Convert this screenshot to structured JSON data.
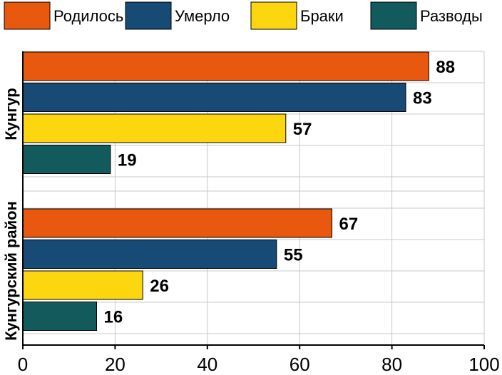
{
  "chart_data": {
    "type": "bar",
    "orientation": "horizontal",
    "categories": [
      "Кунгур",
      "Кунгурский район"
    ],
    "series": [
      {
        "name": "Родилось",
        "color": "#E8590F",
        "values": [
          88,
          67
        ]
      },
      {
        "name": "Умерло",
        "color": "#174A74",
        "values": [
          83,
          55
        ]
      },
      {
        "name": "Браки",
        "color": "#FCD710",
        "values": [
          57,
          26
        ]
      },
      {
        "name": "Разводы",
        "color": "#135A5C",
        "values": [
          19,
          16
        ]
      }
    ],
    "xlim": [
      0,
      100
    ],
    "xticks": [
      "0",
      "20",
      "40",
      "60",
      "80",
      "100"
    ],
    "grid": true,
    "legend_position": "top"
  }
}
